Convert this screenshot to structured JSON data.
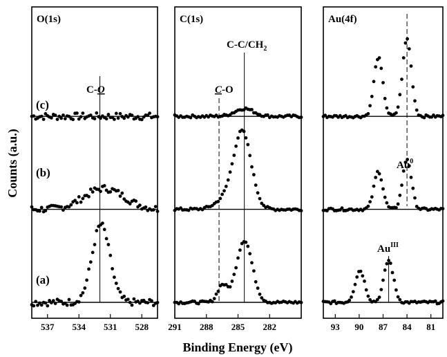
{
  "y_axis_title": "Counts (a.u.)",
  "x_axis_title": "Binding Energy (eV)",
  "trace_labels": [
    "(c)",
    "(b)",
    "(a)"
  ],
  "chart_data": [
    {
      "type": "scatter",
      "title": "O(1s)",
      "xlim": [
        538.5,
        526.5
      ],
      "xticks": [
        "537",
        "534",
        "531",
        "528"
      ],
      "tick_values": [
        537,
        534,
        531,
        528
      ],
      "reference_line": {
        "x": 532.0,
        "label": "C-",
        "label_emph": "O",
        "style": "solid"
      },
      "series": [
        {
          "label": "(c)",
          "offset": 24,
          "peaks": []
        },
        {
          "label": "(b)",
          "offset": 12,
          "peaks": [
            {
              "center": 531.6,
              "height": 2.7,
              "width": 1.9
            }
          ]
        },
        {
          "label": "(a)",
          "offset": 0,
          "peaks": [
            {
              "center": 531.9,
              "height": 10.0,
              "width": 0.85
            }
          ]
        }
      ]
    },
    {
      "type": "scatter",
      "title": "C(1s)",
      "xlim": [
        291.0,
        279.0
      ],
      "xticks": [
        "291",
        "288",
        "285",
        "282"
      ],
      "tick_values": [
        291,
        288,
        285,
        282
      ],
      "reference_lines": [
        {
          "x": 286.8,
          "label": "C",
          "label_rest": "-O",
          "style": "dashed"
        },
        {
          "x": 284.4,
          "label": "C-C/CH",
          "sub": "2",
          "style": "solid"
        }
      ],
      "series": [
        {
          "label": "(c)",
          "offset": 24,
          "peaks": [
            {
              "center": 284.4,
              "height": 1.0,
              "width": 0.9
            }
          ]
        },
        {
          "label": "(b)",
          "offset": 12,
          "peaks": [
            {
              "center": 284.6,
              "height": 10.0,
              "width": 0.85
            },
            {
              "center": 286.4,
              "height": 1.0,
              "width": 0.9
            }
          ]
        },
        {
          "label": "(a)",
          "offset": 0,
          "peaks": [
            {
              "center": 284.4,
              "height": 8.0,
              "width": 0.75
            },
            {
              "center": 286.5,
              "height": 2.2,
              "width": 0.45
            }
          ]
        }
      ]
    },
    {
      "type": "scatter",
      "title": "Au(4f)",
      "xlim": [
        94.5,
        79.5
      ],
      "xticks": [
        "93",
        "90",
        "87",
        "84",
        "81"
      ],
      "tick_values": [
        93,
        90,
        87,
        84,
        81
      ],
      "reference_lines": [
        {
          "x": 84.0,
          "label": "Au",
          "sup": "0",
          "style": "dashed"
        },
        {
          "x": 86.3,
          "label": "Au",
          "sup": "III",
          "style": "solid"
        }
      ],
      "series": [
        {
          "label": "(c)",
          "offset": 24,
          "peaks": [
            {
              "center": 84.0,
              "height": 10.0,
              "width": 0.55
            },
            {
              "center": 87.6,
              "height": 7.6,
              "width": 0.55
            }
          ]
        },
        {
          "label": "(b)",
          "offset": 12,
          "peaks": [
            {
              "center": 84.0,
              "height": 6.5,
              "width": 0.55
            },
            {
              "center": 87.6,
              "height": 4.9,
              "width": 0.55
            }
          ]
        },
        {
          "label": "(a)",
          "offset": 0,
          "peaks": [
            {
              "center": 86.3,
              "height": 5.4,
              "width": 0.6
            },
            {
              "center": 89.9,
              "height": 4.1,
              "width": 0.6
            }
          ]
        }
      ]
    }
  ]
}
